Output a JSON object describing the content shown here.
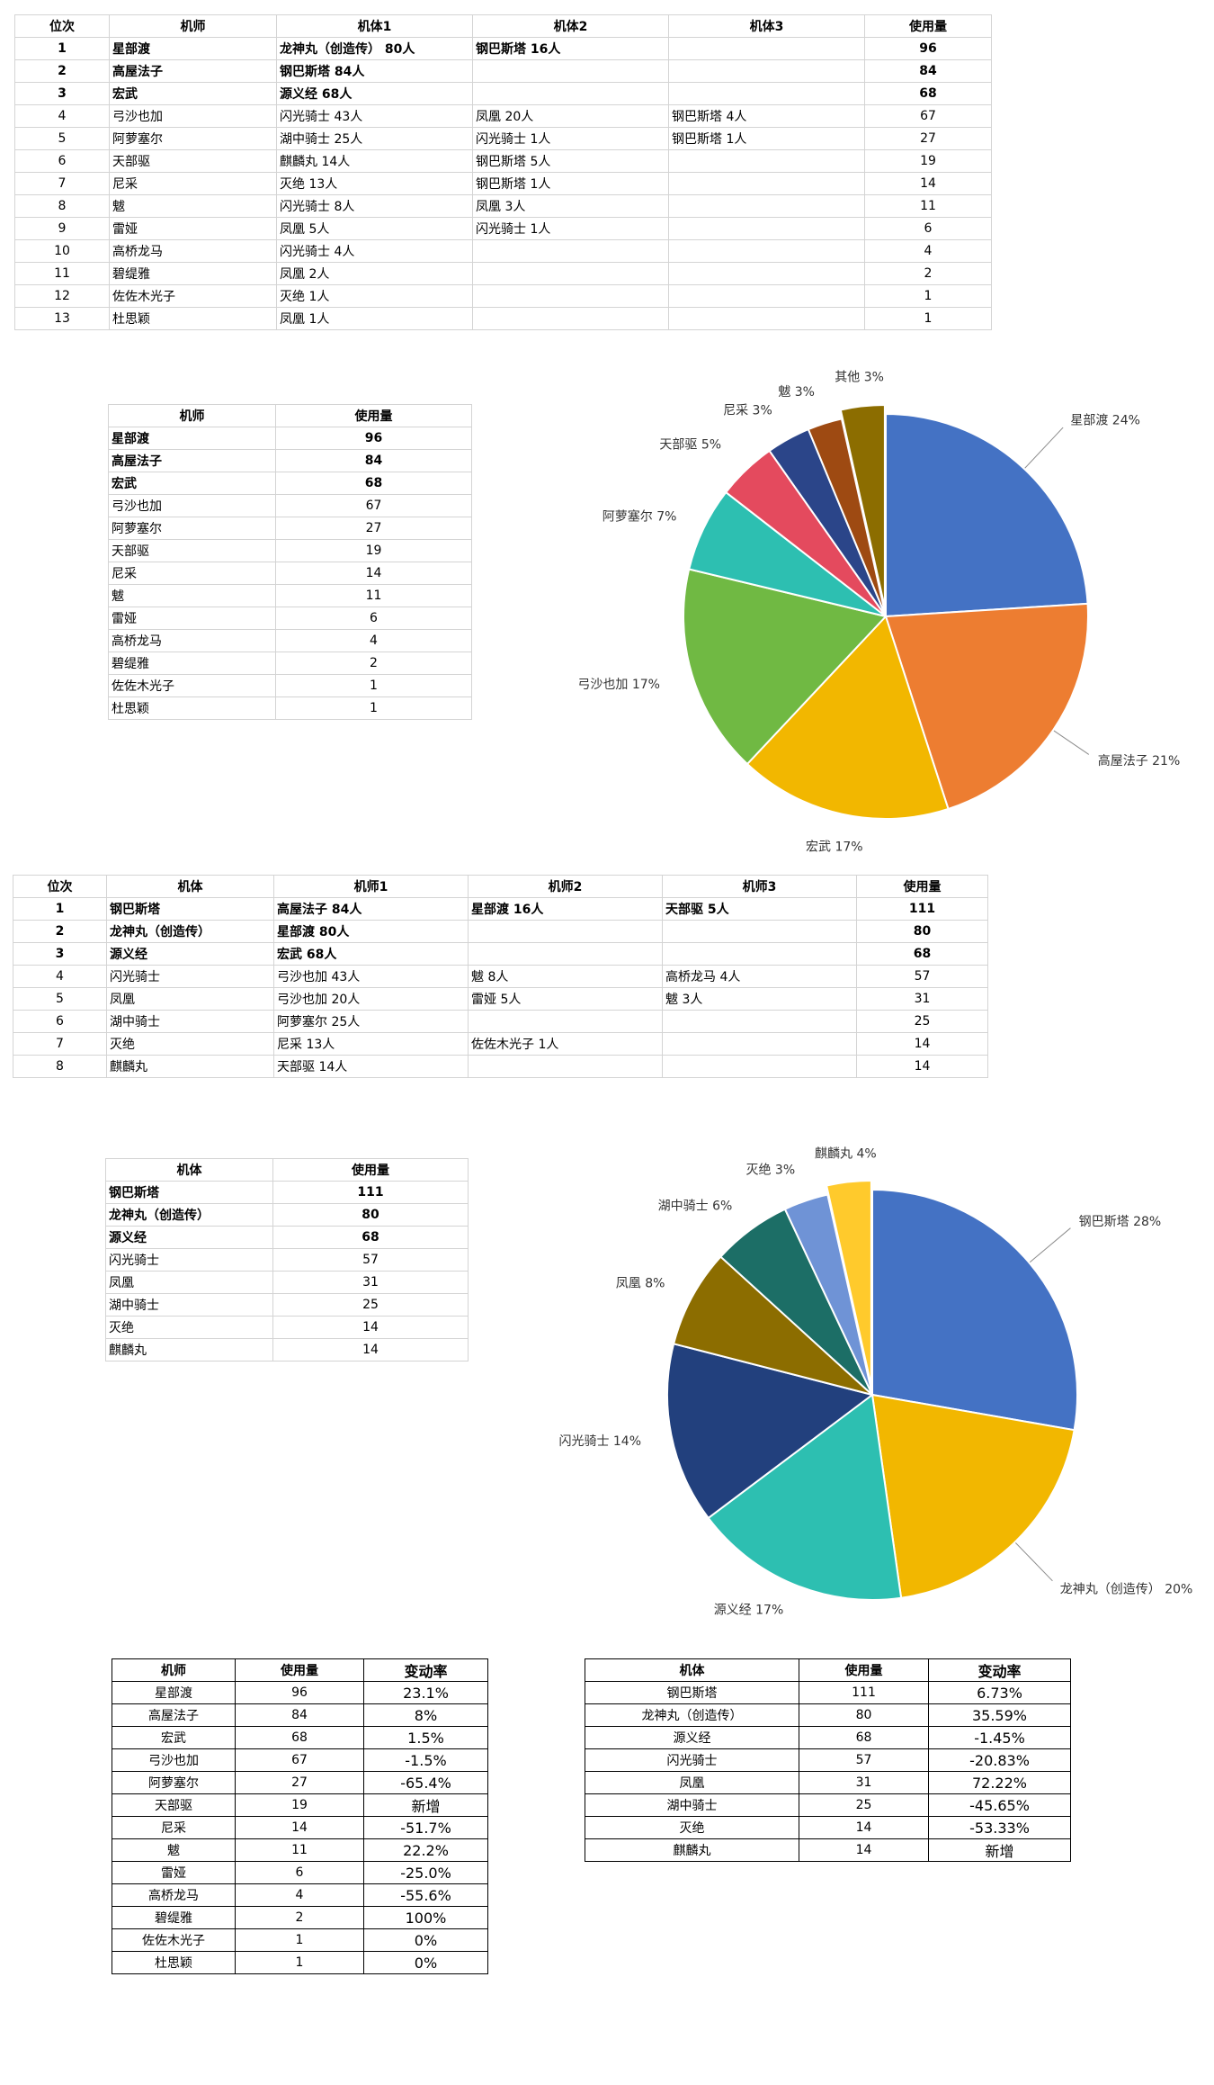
{
  "pilot_detail": {
    "headers": [
      "位次",
      "机师",
      "机体1",
      "机体2",
      "机体3",
      "使用量"
    ],
    "rows": [
      {
        "rank": "1",
        "name": "星部渡",
        "m1": "龙神丸（创造传） 80人",
        "m2": "钢巴斯塔 16人",
        "m3": "",
        "total": "96",
        "bold": true
      },
      {
        "rank": "2",
        "name": "高屋法子",
        "m1": "钢巴斯塔 84人",
        "m2": "",
        "m3": "",
        "total": "84",
        "bold": true
      },
      {
        "rank": "3",
        "name": "宏武",
        "m1": "源义经 68人",
        "m2": "",
        "m3": "",
        "total": "68",
        "bold": true
      },
      {
        "rank": "4",
        "name": "弓沙也加",
        "m1": "闪光骑士 43人",
        "m2": "凤凰 20人",
        "m3": "钢巴斯塔 4人",
        "total": "67",
        "bold": false
      },
      {
        "rank": "5",
        "name": "阿萝塞尔",
        "m1": "湖中骑士 25人",
        "m2": "闪光骑士 1人",
        "m3": "钢巴斯塔 1人",
        "total": "27",
        "bold": false
      },
      {
        "rank": "6",
        "name": "天部驱",
        "m1": "麒麟丸 14人",
        "m2": "钢巴斯塔 5人",
        "m3": "",
        "total": "19",
        "bold": false
      },
      {
        "rank": "7",
        "name": "尼采",
        "m1": "灭绝 13人",
        "m2": "钢巴斯塔 1人",
        "m3": "",
        "total": "14",
        "bold": false
      },
      {
        "rank": "8",
        "name": "魃",
        "m1": "闪光骑士 8人",
        "m2": "凤凰 3人",
        "m3": "",
        "total": "11",
        "bold": false
      },
      {
        "rank": "9",
        "name": "雷娅",
        "m1": "凤凰 5人",
        "m2": "闪光骑士 1人",
        "m3": "",
        "total": "6",
        "bold": false
      },
      {
        "rank": "10",
        "name": "高桥龙马",
        "m1": "闪光骑士 4人",
        "m2": "",
        "m3": "",
        "total": "4",
        "bold": false
      },
      {
        "rank": "11",
        "name": "碧缇雅",
        "m1": "凤凰 2人",
        "m2": "",
        "m3": "",
        "total": "2",
        "bold": false
      },
      {
        "rank": "12",
        "name": "佐佐木光子",
        "m1": "灭绝 1人",
        "m2": "",
        "m3": "",
        "total": "1",
        "bold": false
      },
      {
        "rank": "13",
        "name": "杜思颖",
        "m1": "凤凰 1人",
        "m2": "",
        "m3": "",
        "total": "1",
        "bold": false
      }
    ]
  },
  "pilot_summary": {
    "headers": [
      "机师",
      "使用量"
    ],
    "rows": [
      {
        "name": "星部渡",
        "total": "96",
        "bold": true
      },
      {
        "name": "高屋法子",
        "total": "84",
        "bold": true
      },
      {
        "name": "宏武",
        "total": "68",
        "bold": true
      },
      {
        "name": "弓沙也加",
        "total": "67",
        "bold": false
      },
      {
        "name": "阿萝塞尔",
        "total": "27",
        "bold": false
      },
      {
        "name": "天部驱",
        "total": "19",
        "bold": false
      },
      {
        "name": "尼采",
        "total": "14",
        "bold": false
      },
      {
        "name": "魃",
        "total": "11",
        "bold": false
      },
      {
        "name": "雷娅",
        "total": "6",
        "bold": false
      },
      {
        "name": "高桥龙马",
        "total": "4",
        "bold": false
      },
      {
        "name": "碧缇雅",
        "total": "2",
        "bold": false
      },
      {
        "name": "佐佐木光子",
        "total": "1",
        "bold": false
      },
      {
        "name": "杜思颖",
        "total": "1",
        "bold": false
      }
    ]
  },
  "mecha_detail": {
    "headers": [
      "位次",
      "机体",
      "机师1",
      "机师2",
      "机师3",
      "使用量"
    ],
    "rows": [
      {
        "rank": "1",
        "name": "钢巴斯塔",
        "m1": "高屋法子 84人",
        "m2": "星部渡 16人",
        "m3": "天部驱 5人",
        "total": "111",
        "bold": true
      },
      {
        "rank": "2",
        "name": "龙神丸（创造传）",
        "m1": "星部渡 80人",
        "m2": "",
        "m3": "",
        "total": "80",
        "bold": true
      },
      {
        "rank": "3",
        "name": "源义经",
        "m1": "宏武 68人",
        "m2": "",
        "m3": "",
        "total": "68",
        "bold": true
      },
      {
        "rank": "4",
        "name": "闪光骑士",
        "m1": "弓沙也加 43人",
        "m2": "魃 8人",
        "m3": "高桥龙马 4人",
        "total": "57",
        "bold": false
      },
      {
        "rank": "5",
        "name": "凤凰",
        "m1": "弓沙也加 20人",
        "m2": "雷娅 5人",
        "m3": "魃 3人",
        "total": "31",
        "bold": false
      },
      {
        "rank": "6",
        "name": "湖中骑士",
        "m1": "阿萝塞尔 25人",
        "m2": "",
        "m3": "",
        "total": "25",
        "bold": false
      },
      {
        "rank": "7",
        "name": "灭绝",
        "m1": "尼采 13人",
        "m2": "佐佐木光子 1人",
        "m3": "",
        "total": "14",
        "bold": false
      },
      {
        "rank": "8",
        "name": "麒麟丸",
        "m1": "天部驱 14人",
        "m2": "",
        "m3": "",
        "total": "14",
        "bold": false
      }
    ]
  },
  "mecha_summary": {
    "headers": [
      "机体",
      "使用量"
    ],
    "rows": [
      {
        "name": "钢巴斯塔",
        "total": "111",
        "bold": true
      },
      {
        "name": "龙神丸（创造传）",
        "total": "80",
        "bold": true
      },
      {
        "name": "源义经",
        "total": "68",
        "bold": true
      },
      {
        "name": "闪光骑士",
        "total": "57",
        "bold": false
      },
      {
        "name": "凤凰",
        "total": "31",
        "bold": false
      },
      {
        "name": "湖中骑士",
        "total": "25",
        "bold": false
      },
      {
        "name": "灭绝",
        "total": "14",
        "bold": false
      },
      {
        "name": "麒麟丸",
        "total": "14",
        "bold": false
      }
    ]
  },
  "pilot_change": {
    "headers": [
      "机师",
      "使用量",
      "变动率"
    ],
    "rows": [
      {
        "name": "星部渡",
        "total": "96",
        "change": "23.1%"
      },
      {
        "name": "高屋法子",
        "total": "84",
        "change": "8%"
      },
      {
        "name": "宏武",
        "total": "68",
        "change": "1.5%"
      },
      {
        "name": "弓沙也加",
        "total": "67",
        "change": "-1.5%"
      },
      {
        "name": "阿萝塞尔",
        "total": "27",
        "change": "-65.4%"
      },
      {
        "name": "天部驱",
        "total": "19",
        "change": "新增"
      },
      {
        "name": "尼采",
        "total": "14",
        "change": "-51.7%"
      },
      {
        "name": "魃",
        "total": "11",
        "change": "22.2%"
      },
      {
        "name": "雷娅",
        "total": "6",
        "change": "-25.0%"
      },
      {
        "name": "高桥龙马",
        "total": "4",
        "change": "-55.6%"
      },
      {
        "name": "碧缇雅",
        "total": "2",
        "change": "100%"
      },
      {
        "name": "佐佐木光子",
        "total": "1",
        "change": "0%"
      },
      {
        "name": "杜思颖",
        "total": "1",
        "change": "0%"
      }
    ]
  },
  "mecha_change": {
    "headers": [
      "机体",
      "使用量",
      "变动率"
    ],
    "rows": [
      {
        "name": "钢巴斯塔",
        "total": "111",
        "change": "6.73%"
      },
      {
        "name": "龙神丸（创造传）",
        "total": "80",
        "change": "35.59%"
      },
      {
        "name": "源义经",
        "total": "68",
        "change": "-1.45%"
      },
      {
        "name": "闪光骑士",
        "total": "57",
        "change": "-20.83%"
      },
      {
        "name": "凤凰",
        "total": "31",
        "change": "72.22%"
      },
      {
        "name": "湖中骑士",
        "total": "25",
        "change": "-45.65%"
      },
      {
        "name": "灭绝",
        "total": "14",
        "change": "-53.33%"
      },
      {
        "name": "麒麟丸",
        "total": "14",
        "change": "新增"
      }
    ]
  },
  "chart_data": [
    {
      "type": "pie",
      "categories": [
        "星部渡",
        "高屋法子",
        "宏武",
        "弓沙也加",
        "阿萝塞尔",
        "天部驱",
        "尼采",
        "魃",
        "其他"
      ],
      "values": [
        96,
        84,
        68,
        67,
        27,
        19,
        14,
        11,
        14
      ],
      "labels": [
        "星部渡 24%",
        "高屋法子 21%",
        "宏武 17%",
        "弓沙也加 17%",
        "阿萝塞尔 7%",
        "天部驱 5%",
        "尼采 3%",
        "魃 3%",
        "其他 3%"
      ],
      "colors": [
        "#4472C4",
        "#ED7D31",
        "#F2B700",
        "#70B943",
        "#2DBFB1",
        "#E44A5E",
        "#2B4589",
        "#9E4A12",
        "#8C6D00"
      ],
      "start_angle": 0,
      "legend": "none"
    },
    {
      "type": "pie",
      "categories": [
        "钢巴斯塔",
        "龙神丸（创造传）",
        "源义经",
        "闪光骑士",
        "凤凰",
        "湖中骑士",
        "灭绝",
        "麒麟丸"
      ],
      "values": [
        111,
        80,
        68,
        57,
        31,
        25,
        14,
        14
      ],
      "labels": [
        "钢巴斯塔 28%",
        "龙神丸（创造传） 20%",
        "源义经 17%",
        "闪光骑士 14%",
        "凤凰 8%",
        "湖中骑士 6%",
        "灭绝 3%",
        "麒麟丸 4%"
      ],
      "colors": [
        "#4472C4",
        "#F2B700",
        "#2DBFB1",
        "#22407D",
        "#8C6D00",
        "#1C6E66",
        "#6F93D6",
        "#FFCA2C"
      ],
      "start_angle": 0,
      "legend": "none"
    }
  ]
}
